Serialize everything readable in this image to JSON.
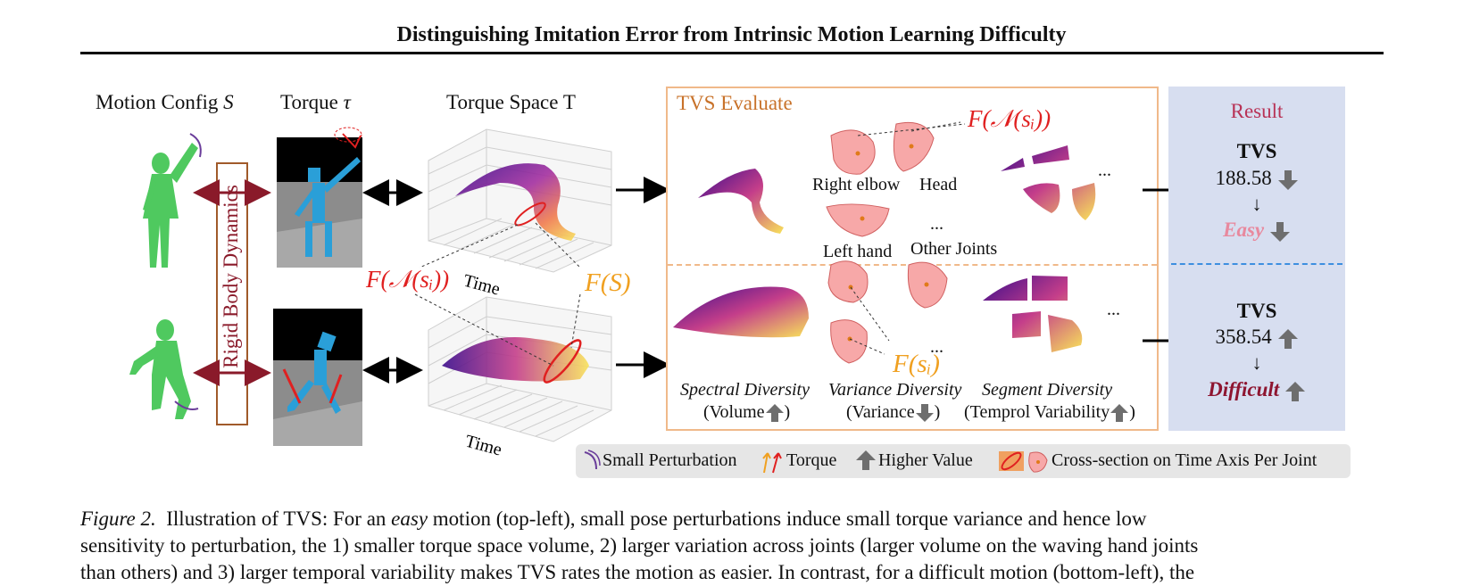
{
  "figure_title": "Distinguishing Imitation Error from Intrinsic Motion Learning Difficulty",
  "column_headers": {
    "motion_config": "Motion Config",
    "motion_config_symbol": "S",
    "torque": "Torque",
    "torque_symbol": "τ",
    "torque_space": "Torque Space T"
  },
  "rigid_body_label": "Rigid Body Dynamics",
  "plot_axis_label_time": "Time",
  "math_labels": {
    "f_neighborhood_left": "F(𝒩(sᵢ))",
    "f_s": "F(S)",
    "f_neighborhood_top": "F(𝒩(sᵢ))",
    "f_si": "F(sᵢ)"
  },
  "tvs_panel": {
    "title": "TVS Evaluate",
    "joints_top": [
      "Right elbow",
      "Head",
      "Left hand",
      "Other Joints"
    ],
    "ellipsis": "...",
    "metrics": [
      {
        "name": "Spectral Diversity",
        "sub": "(Volume",
        "direction": "up"
      },
      {
        "name": "Variance Diversity",
        "sub": "(Variance",
        "direction": "down"
      },
      {
        "name": "Segment Diversity",
        "sub": "(Temprol Variability",
        "direction": "up"
      }
    ],
    "close_paren": ")"
  },
  "result_panel": {
    "title": "Result",
    "top": {
      "tvs_label": "TVS",
      "value": "188.58",
      "verdict": "Easy",
      "direction": "down"
    },
    "bottom": {
      "tvs_label": "TVS",
      "value": "358.54",
      "verdict": "Difficult",
      "direction": "up"
    }
  },
  "legend": {
    "small_perturbation": "Small Perturbation",
    "torque": "Torque",
    "higher_value": "Higher Value",
    "cross_section": "Cross-section on Time Axis Per Joint"
  },
  "caption": {
    "label": "Figure 2.",
    "line1_a": "Illustration of TVS: For an",
    "line1_em": "easy",
    "line1_b": "motion (top-left), small pose perturbations induce small torque variance and hence low",
    "line2": "sensitivity to perturbation, the 1) smaller torque space volume, 2) larger variation across joints (larger volume on the waving hand joints",
    "line3": "than others) and 3) larger temporal variability makes TVS rates the motion as easier. In contrast, for a difficult motion (bottom-left), the"
  },
  "colors": {
    "accent_orange": "#c8722a",
    "result_bg": "#d7def0",
    "result_title": "#b83256",
    "easy": "#e8899e",
    "difficult": "#8e1530",
    "red_math": "#e02020",
    "orange_math": "#f0a020",
    "figure_green": "#4fc95f",
    "robot_blue": "#2a9fd8",
    "dynamics_red": "#8a1a2a"
  },
  "icons": [
    "humanoid-figure-icon",
    "robot-icon",
    "double-arrow-icon",
    "right-arrow-icon",
    "up-arrow-icon",
    "down-arrow-icon",
    "torque-arrow-icon",
    "perturbation-arc-icon",
    "cross-section-icon"
  ]
}
